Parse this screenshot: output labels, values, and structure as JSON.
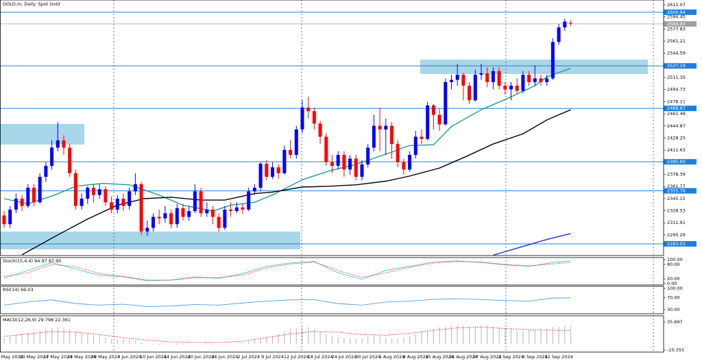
{
  "chart_data": [
    {
      "type": "candlestick",
      "title": "GOLD.m, Daily:  Spot Gold",
      "categories": [
        null,
        "7 May 2024",
        null,
        null,
        null,
        "13 May 2024",
        null,
        null,
        null,
        "17 May 2024",
        null,
        null,
        null,
        "23 May 2024",
        null,
        null,
        null,
        "29 May 2024",
        null,
        null,
        null,
        "4 Jun 2024",
        null,
        null,
        null,
        "10 Jun 2024",
        null,
        null,
        null,
        "14 Jun 2024",
        null,
        null,
        null,
        "20 Jun 2024",
        null,
        null,
        null,
        "26 Jun 2024",
        null,
        null,
        null,
        "2 Jul 2024",
        null,
        null,
        null,
        "9 Jul 2024",
        null,
        null,
        null,
        "12 Jul 2024",
        null,
        null,
        null,
        "18 Jul 2024",
        null,
        null,
        null,
        "24 Jul 2024",
        null,
        null,
        null,
        "30 Jul 2024",
        null,
        null,
        null,
        "5 Aug 2024",
        null,
        null,
        null,
        "9 Aug 2024",
        null,
        null,
        null,
        "15 Aug 2024",
        null,
        null,
        null,
        "21 Aug 2024",
        null,
        null,
        null,
        "27 Aug 2024",
        null,
        null,
        null,
        "2 Sep 2024",
        null,
        null,
        null,
        "6 Sep 2024",
        null,
        null,
        null,
        "12 Sep 2024",
        null,
        null
      ],
      "open": [
        2322,
        2310,
        2330,
        2345,
        2335,
        2360,
        2340,
        2375,
        2390,
        2415,
        2425,
        2415,
        2380,
        2335,
        2345,
        2360,
        2350,
        2358,
        2340,
        2330,
        2345,
        2335,
        2355,
        2365,
        2300,
        2305,
        2320,
        2318,
        2325,
        2310,
        2332,
        2320,
        2328,
        2355,
        2325,
        2330,
        2320,
        2305,
        2330,
        2328,
        2333,
        2330,
        2355,
        2360,
        2393,
        2375,
        2388,
        2380,
        2412,
        2405,
        2440,
        2470,
        2465,
        2448,
        2430,
        2395,
        2390,
        2405,
        2385,
        2400,
        2375,
        2392,
        2415,
        2445,
        2440,
        2445,
        2420,
        2395,
        2385,
        2405,
        2430,
        2427,
        2473,
        2460,
        2447,
        2505,
        2508,
        2515,
        2500,
        2480,
        2515,
        2517,
        2505,
        2520,
        2500,
        2495,
        2500,
        2493,
        2515,
        2505,
        2510,
        2505,
        2510,
        2560,
        2580,
        2586
      ],
      "high": [
        2328,
        2335,
        2352,
        2350,
        2365,
        2365,
        2380,
        2395,
        2425,
        2450,
        2432,
        2420,
        2385,
        2352,
        2362,
        2365,
        2365,
        2362,
        2348,
        2350,
        2352,
        2360,
        2380,
        2368,
        2315,
        2325,
        2330,
        2335,
        2330,
        2338,
        2338,
        2335,
        2365,
        2360,
        2340,
        2335,
        2325,
        2335,
        2340,
        2340,
        2338,
        2360,
        2365,
        2395,
        2398,
        2395,
        2392,
        2418,
        2425,
        2445,
        2480,
        2485,
        2470,
        2452,
        2435,
        2405,
        2410,
        2410,
        2405,
        2405,
        2398,
        2420,
        2460,
        2470,
        2455,
        2450,
        2425,
        2400,
        2410,
        2438,
        2440,
        2478,
        2475,
        2468,
        2510,
        2515,
        2530,
        2518,
        2505,
        2522,
        2530,
        2525,
        2525,
        2525,
        2505,
        2505,
        2510,
        2520,
        2520,
        2528,
        2515,
        2515,
        2565,
        2585,
        2592,
        2590
      ],
      "low": [
        2305,
        2305,
        2325,
        2328,
        2332,
        2335,
        2338,
        2368,
        2385,
        2410,
        2405,
        2375,
        2330,
        2330,
        2338,
        2340,
        2345,
        2335,
        2325,
        2325,
        2328,
        2330,
        2350,
        2295,
        2294,
        2300,
        2310,
        2312,
        2305,
        2305,
        2315,
        2315,
        2325,
        2320,
        2320,
        2310,
        2300,
        2302,
        2320,
        2325,
        2324,
        2328,
        2350,
        2355,
        2370,
        2372,
        2372,
        2378,
        2400,
        2400,
        2435,
        2455,
        2440,
        2420,
        2390,
        2380,
        2385,
        2375,
        2378,
        2370,
        2370,
        2388,
        2410,
        2410,
        2405,
        2400,
        2388,
        2378,
        2382,
        2400,
        2420,
        2425,
        2440,
        2438,
        2445,
        2495,
        2500,
        2480,
        2475,
        2478,
        2508,
        2498,
        2495,
        2495,
        2488,
        2480,
        2488,
        2490,
        2500,
        2500,
        2500,
        2500,
        2508,
        2556,
        2575,
        2582
      ],
      "close": [
        2310,
        2330,
        2345,
        2335,
        2360,
        2340,
        2375,
        2390,
        2415,
        2425,
        2415,
        2380,
        2335,
        2345,
        2360,
        2350,
        2358,
        2340,
        2330,
        2345,
        2335,
        2355,
        2365,
        2300,
        2305,
        2320,
        2318,
        2325,
        2310,
        2332,
        2320,
        2328,
        2355,
        2325,
        2330,
        2320,
        2305,
        2330,
        2328,
        2333,
        2330,
        2355,
        2360,
        2393,
        2375,
        2388,
        2380,
        2412,
        2405,
        2440,
        2470,
        2465,
        2448,
        2430,
        2395,
        2390,
        2405,
        2385,
        2400,
        2375,
        2392,
        2415,
        2445,
        2440,
        2445,
        2420,
        2395,
        2385,
        2405,
        2430,
        2427,
        2473,
        2460,
        2447,
        2505,
        2508,
        2515,
        2500,
        2480,
        2515,
        2517,
        2505,
        2520,
        2500,
        2495,
        2500,
        2493,
        2515,
        2505,
        2510,
        2505,
        2510,
        2560,
        2580,
        2588,
        2585
      ],
      "up_color": "#0000ff",
      "down_color": "#ff0000",
      "ylim": [
        2267,
        2617.6
      ],
      "yticks": [
        2611.07,
        2594.45,
        2577.83,
        2561.21,
        2544.59,
        2511.35,
        2494.73,
        2478.11,
        2461.49,
        2444.87,
        2428.25,
        2411.63,
        2378.39,
        2361.77,
        2345.15,
        2328.53,
        2311.91,
        2295.29
      ],
      "levels": [
        2600.84,
        2527.19,
        2468.87,
        {
          "value": 2395.6,
          "label": "2395.60"
        },
        2355.76,
        2283.03
      ],
      "level_color": "#1e7fd8",
      "current_price": {
        "value": 2584.8,
        "label": "2584.80"
      },
      "current_price_color": "#a0a0a0",
      "overlays": [
        {
          "color": "#1f9b8f",
          "x": [
            0,
            4,
            8.5,
            12,
            16.5,
            21,
            26,
            30,
            35,
            38,
            42,
            45,
            50,
            54.5,
            59,
            64,
            68,
            72,
            75,
            80,
            84,
            89,
            91,
            95
          ],
          "values": [
            2345,
            2338,
            2350,
            2362,
            2366,
            2364,
            2350,
            2336,
            2328,
            2336,
            2340,
            2350,
            2371,
            2383,
            2392,
            2406,
            2418,
            2419,
            2444,
            2467,
            2481,
            2500,
            2512,
            2524
          ]
        },
        {
          "color": "#000000",
          "x": [
            3,
            8.5,
            14,
            19,
            23.5,
            28,
            33,
            37,
            42,
            45,
            50,
            54.5,
            59,
            64,
            68,
            73,
            77.5,
            82,
            87,
            91,
            95
          ],
          "values": [
            2268,
            2293,
            2317,
            2336,
            2345,
            2347,
            2343,
            2343,
            2352,
            2354,
            2361,
            2362,
            2364,
            2369,
            2376,
            2387,
            2403,
            2420,
            2434,
            2453,
            2467
          ]
        },
        {
          "color": "#1a2fd0",
          "x": [
            82,
            91,
            95
          ],
          "values": [
            2267.5,
            2289,
            2297
          ]
        }
      ]
    },
    {
      "type": "line",
      "title": "Stoch(15,4,4) 94.97 87.90",
      "ylim": [
        -5.7,
        108.6
      ],
      "yticks": [
        {
          "value": 100,
          "label": "100.00"
        },
        {
          "value": 80,
          "label": "80.00"
        },
        {
          "value": 20,
          "label": "20.00"
        },
        {
          "value": 0,
          "label": "0.00"
        }
      ],
      "series": [
        {
          "color": "#3fb8c8",
          "dash": false,
          "x": [
            0,
            4,
            8,
            12,
            16,
            20,
            24,
            28,
            32,
            36,
            40,
            44,
            48,
            52,
            56,
            60,
            64,
            68,
            72,
            76,
            80,
            84,
            88,
            92,
            95
          ],
          "values": [
            22,
            55,
            88,
            60,
            35,
            28,
            12,
            15,
            28,
            22,
            42,
            72,
            86,
            92,
            45,
            18,
            55,
            72,
            90,
            95,
            88,
            78,
            72,
            88,
            95
          ]
        },
        {
          "color": "#e03030",
          "dash": true,
          "x": [
            0,
            4,
            8,
            12,
            16,
            20,
            24,
            28,
            32,
            36,
            40,
            44,
            48,
            52,
            56,
            60,
            64,
            68,
            72,
            76,
            80,
            84,
            88,
            92,
            95
          ],
          "values": [
            30,
            45,
            80,
            70,
            42,
            30,
            15,
            14,
            24,
            25,
            35,
            65,
            82,
            90,
            55,
            25,
            45,
            68,
            86,
            92,
            90,
            80,
            74,
            82,
            88
          ]
        }
      ]
    },
    {
      "type": "line",
      "title": "RSI(14) 69.03",
      "ylim": [
        16.5,
        106.8
      ],
      "yticks": [
        {
          "value": 100,
          "label": "100.00"
        },
        {
          "value": 70,
          "label": "70.00"
        },
        {
          "value": 30,
          "label": "30.00"
        }
      ],
      "series": [
        {
          "color": "#3a8fd8",
          "dash": false,
          "x": [
            0,
            4,
            8,
            12,
            16,
            20,
            24,
            28,
            32,
            36,
            40,
            44,
            48,
            52,
            56,
            60,
            64,
            68,
            72,
            76,
            80,
            84,
            88,
            92,
            95
          ],
          "values": [
            45,
            55,
            62,
            50,
            45,
            48,
            40,
            42,
            47,
            45,
            52,
            58,
            62,
            63,
            50,
            45,
            55,
            58,
            64,
            66,
            63,
            60,
            58,
            68,
            69
          ]
        }
      ]
    },
    {
      "type": "macd",
      "title": "MACD(12,26,9) 29.798 22.361",
      "ylim": [
        -13.7,
        45.8
      ],
      "yticks": [
        35.697,
        -10.355
      ],
      "histogram": {
        "color": "#c0c0c0",
        "values": [
          10,
          12,
          14,
          16,
          18,
          20,
          22,
          24,
          26,
          27,
          26,
          24,
          20,
          18,
          16,
          14,
          12,
          10,
          8,
          7,
          8,
          7,
          5,
          2,
          0,
          -1,
          -2,
          -2,
          -1,
          -2,
          -1,
          0,
          0,
          -1,
          -1,
          -2,
          -1,
          0,
          1,
          1,
          2,
          4,
          7,
          9,
          10,
          12,
          16,
          20,
          24,
          26,
          28,
          27,
          24,
          20,
          16,
          13,
          11,
          10,
          9,
          8,
          9,
          12,
          14,
          13,
          11,
          9,
          8,
          10,
          13,
          16,
          20,
          22,
          24,
          27,
          28,
          30,
          30,
          29,
          28,
          29,
          30,
          30,
          28,
          27,
          26,
          24,
          22,
          21,
          22,
          23,
          24,
          25,
          27,
          28,
          29,
          30
        ]
      },
      "series": [
        {
          "color": "#e03030",
          "dash": true,
          "x": [
            0,
            4,
            8,
            12,
            16,
            20,
            24,
            28,
            32,
            36,
            40,
            44,
            48,
            52,
            56,
            60,
            64,
            68,
            72,
            76,
            80,
            84,
            88,
            92,
            95
          ],
          "values": [
            12,
            16,
            20,
            19,
            15,
            10,
            6,
            3,
            2,
            2,
            4,
            10,
            16,
            20,
            19,
            15,
            14,
            17,
            22,
            26,
            27,
            25,
            23,
            22,
            22
          ]
        }
      ]
    }
  ]
}
